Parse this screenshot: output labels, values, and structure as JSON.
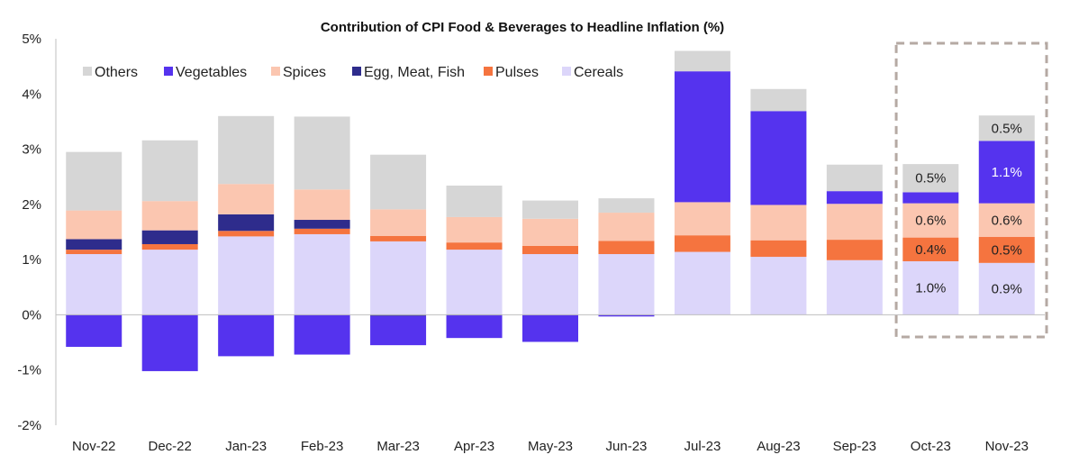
{
  "chart_data": {
    "type": "bar",
    "stacked": true,
    "title": "Contribution of CPI Food & Beverages to Headline Inflation (%)",
    "xlabel": "",
    "ylabel": "",
    "ylim": [
      -2,
      5
    ],
    "yticks": [
      -2,
      -1,
      0,
      1,
      2,
      3,
      4,
      5
    ],
    "ytick_labels": [
      "-2%",
      "-1%",
      "0%",
      "1%",
      "2%",
      "3%",
      "4%",
      "5%"
    ],
    "grid": false,
    "legend_position": "top-left",
    "categories": [
      "Nov-22",
      "Dec-22",
      "Jan-23",
      "Feb-23",
      "Mar-23",
      "Apr-23",
      "May-23",
      "Jun-23",
      "Jul-23",
      "Aug-23",
      "Sep-23",
      "Oct-23",
      "Nov-23"
    ],
    "series": [
      {
        "name": "Cereals",
        "color": "#dcd6fa",
        "values": [
          1.1,
          1.18,
          1.42,
          1.46,
          1.33,
          1.18,
          1.1,
          1.1,
          1.14,
          1.05,
          0.99,
          0.97,
          0.94
        ]
      },
      {
        "name": "Pulses",
        "color": "#f5743f",
        "values": [
          0.08,
          0.1,
          0.1,
          0.1,
          0.1,
          0.13,
          0.15,
          0.24,
          0.3,
          0.3,
          0.37,
          0.43,
          0.47
        ]
      },
      {
        "name": "Egg, Meat, Fish",
        "color": "#2e2c8c",
        "values": [
          0.19,
          0.25,
          0.3,
          0.16,
          -0.02,
          -0.01,
          0.0,
          0.0,
          0.0,
          0.0,
          0.0,
          0.0,
          0.0
        ]
      },
      {
        "name": "Spices",
        "color": "#fbc6b0",
        "values": [
          0.52,
          0.53,
          0.55,
          0.55,
          0.48,
          0.46,
          0.49,
          0.51,
          0.6,
          0.64,
          0.65,
          0.62,
          0.61
        ]
      },
      {
        "name": "Vegetables",
        "color": "#5533ee",
        "values": [
          -0.58,
          -1.02,
          -0.75,
          -0.72,
          -0.53,
          -0.41,
          -0.49,
          -0.03,
          2.37,
          1.7,
          0.23,
          0.2,
          1.13
        ]
      },
      {
        "name": "Others",
        "color": "#d6d6d6",
        "values": [
          1.06,
          1.1,
          1.23,
          1.32,
          0.99,
          0.57,
          0.33,
          0.26,
          0.37,
          0.4,
          0.48,
          0.51,
          0.46
        ]
      }
    ],
    "data_labels": [
      {
        "category_index": 11,
        "series": "Cereals",
        "text": "1.0%"
      },
      {
        "category_index": 11,
        "series": "Pulses",
        "text": "0.4%"
      },
      {
        "category_index": 11,
        "series": "Spices",
        "text": "0.6%"
      },
      {
        "category_index": 11,
        "series": "Others",
        "text": "0.5%"
      },
      {
        "category_index": 12,
        "series": "Cereals",
        "text": "0.9%"
      },
      {
        "category_index": 12,
        "series": "Pulses",
        "text": "0.5%"
      },
      {
        "category_index": 12,
        "series": "Spices",
        "text": "0.6%"
      },
      {
        "category_index": 12,
        "series": "Vegetables",
        "text": "1.1%"
      },
      {
        "category_index": 12,
        "series": "Others",
        "text": "0.5%"
      }
    ],
    "highlight": {
      "categories": [
        "Oct-23",
        "Nov-23"
      ],
      "style": "dashed-box",
      "color": "#b5a9a3"
    },
    "legend_order": [
      "Others",
      "Vegetables",
      "Spices",
      "Egg, Meat, Fish",
      "Pulses",
      "Cereals"
    ]
  }
}
